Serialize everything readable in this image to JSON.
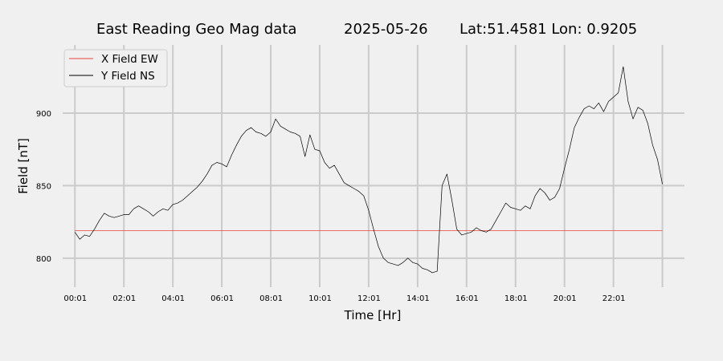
{
  "chart_data": {
    "type": "line",
    "title_left": "East Reading Geo Mag data",
    "title_date": "2025-05-26",
    "title_coords": "Lat:51.4581  Lon: 0.9205",
    "xlabel": "Time  [Hr]",
    "ylabel": "Field  [nT]",
    "x_unit": "hours",
    "xlim": [
      -0.5,
      24.9
    ],
    "ylim": [
      780,
      947
    ],
    "grid": true,
    "legend_position": "top-left",
    "x_ticks": [
      {
        "x": 0.017,
        "label": "00:01"
      },
      {
        "x": 2.017,
        "label": "02:01"
      },
      {
        "x": 4.017,
        "label": "04:01"
      },
      {
        "x": 6.017,
        "label": "06:01"
      },
      {
        "x": 8.017,
        "label": "08:01"
      },
      {
        "x": 10.017,
        "label": "10:01"
      },
      {
        "x": 12.017,
        "label": "12:01"
      },
      {
        "x": 14.017,
        "label": "14:01"
      },
      {
        "x": 16.017,
        "label": "16:01"
      },
      {
        "x": 18.017,
        "label": "18:01"
      },
      {
        "x": 20.017,
        "label": "20:01"
      },
      {
        "x": 22.017,
        "label": "22:01"
      }
    ],
    "x_grid": [
      0,
      2,
      4,
      6,
      8,
      10,
      12,
      14,
      16,
      18,
      20,
      22,
      24
    ],
    "y_ticks": [
      {
        "y": 800,
        "label": "800"
      },
      {
        "y": 850,
        "label": "850"
      },
      {
        "y": 900,
        "label": "900"
      }
    ],
    "series": [
      {
        "name": "X Field EW",
        "color": "#e8453c",
        "x": [
          0,
          24
        ],
        "y": [
          819,
          819
        ]
      },
      {
        "name": "Y Field NS",
        "color": "#000000",
        "x": [
          0.0,
          0.2,
          0.4,
          0.6,
          0.8,
          1.0,
          1.2,
          1.4,
          1.6,
          1.8,
          2.0,
          2.2,
          2.4,
          2.6,
          2.8,
          3.0,
          3.2,
          3.4,
          3.6,
          3.8,
          4.0,
          4.2,
          4.4,
          4.6,
          4.8,
          5.0,
          5.2,
          5.4,
          5.6,
          5.8,
          6.0,
          6.2,
          6.4,
          6.6,
          6.8,
          7.0,
          7.2,
          7.4,
          7.6,
          7.8,
          8.0,
          8.2,
          8.4,
          8.6,
          8.8,
          9.0,
          9.2,
          9.4,
          9.6,
          9.8,
          10.0,
          10.2,
          10.4,
          10.6,
          10.8,
          11.0,
          11.2,
          11.4,
          11.6,
          11.8,
          12.0,
          12.2,
          12.4,
          12.6,
          12.8,
          13.0,
          13.2,
          13.4,
          13.6,
          13.8,
          14.0,
          14.2,
          14.4,
          14.6,
          14.8,
          15.0,
          15.2,
          15.4,
          15.6,
          15.8,
          16.0,
          16.2,
          16.4,
          16.6,
          16.8,
          17.0,
          17.2,
          17.4,
          17.6,
          17.8,
          18.0,
          18.2,
          18.4,
          18.6,
          18.8,
          19.0,
          19.2,
          19.4,
          19.6,
          19.8,
          20.0,
          20.2,
          20.4,
          20.6,
          20.8,
          21.0,
          21.2,
          21.4,
          21.6,
          21.8,
          22.0,
          22.2,
          22.4,
          22.6,
          22.8,
          23.0,
          23.2,
          23.4,
          23.6,
          23.8,
          24.0
        ],
        "y": [
          818,
          813,
          816,
          815,
          820,
          826,
          831,
          829,
          828,
          829,
          830,
          830,
          834,
          836,
          834,
          832,
          829,
          832,
          834,
          833,
          837,
          838,
          840,
          843,
          846,
          849,
          853,
          858,
          864,
          866,
          865,
          863,
          871,
          878,
          884,
          888,
          890,
          887,
          886,
          884,
          887,
          896,
          891,
          889,
          887,
          886,
          884,
          870,
          885,
          875,
          874,
          866,
          862,
          864,
          858,
          852,
          850,
          848,
          846,
          843,
          833,
          820,
          808,
          800,
          797,
          796,
          795,
          797,
          800,
          797,
          796,
          793,
          792,
          790,
          791,
          850,
          858,
          840,
          820,
          816,
          817,
          818,
          821,
          819,
          818,
          820,
          826,
          832,
          838,
          835,
          834,
          833,
          836,
          834,
          843,
          848,
          845,
          840,
          842,
          848,
          862,
          875,
          890,
          897,
          903,
          905,
          903,
          907,
          901,
          908,
          911,
          914,
          932,
          908,
          896,
          904,
          902,
          893,
          878,
          868,
          851
        ]
      }
    ]
  }
}
